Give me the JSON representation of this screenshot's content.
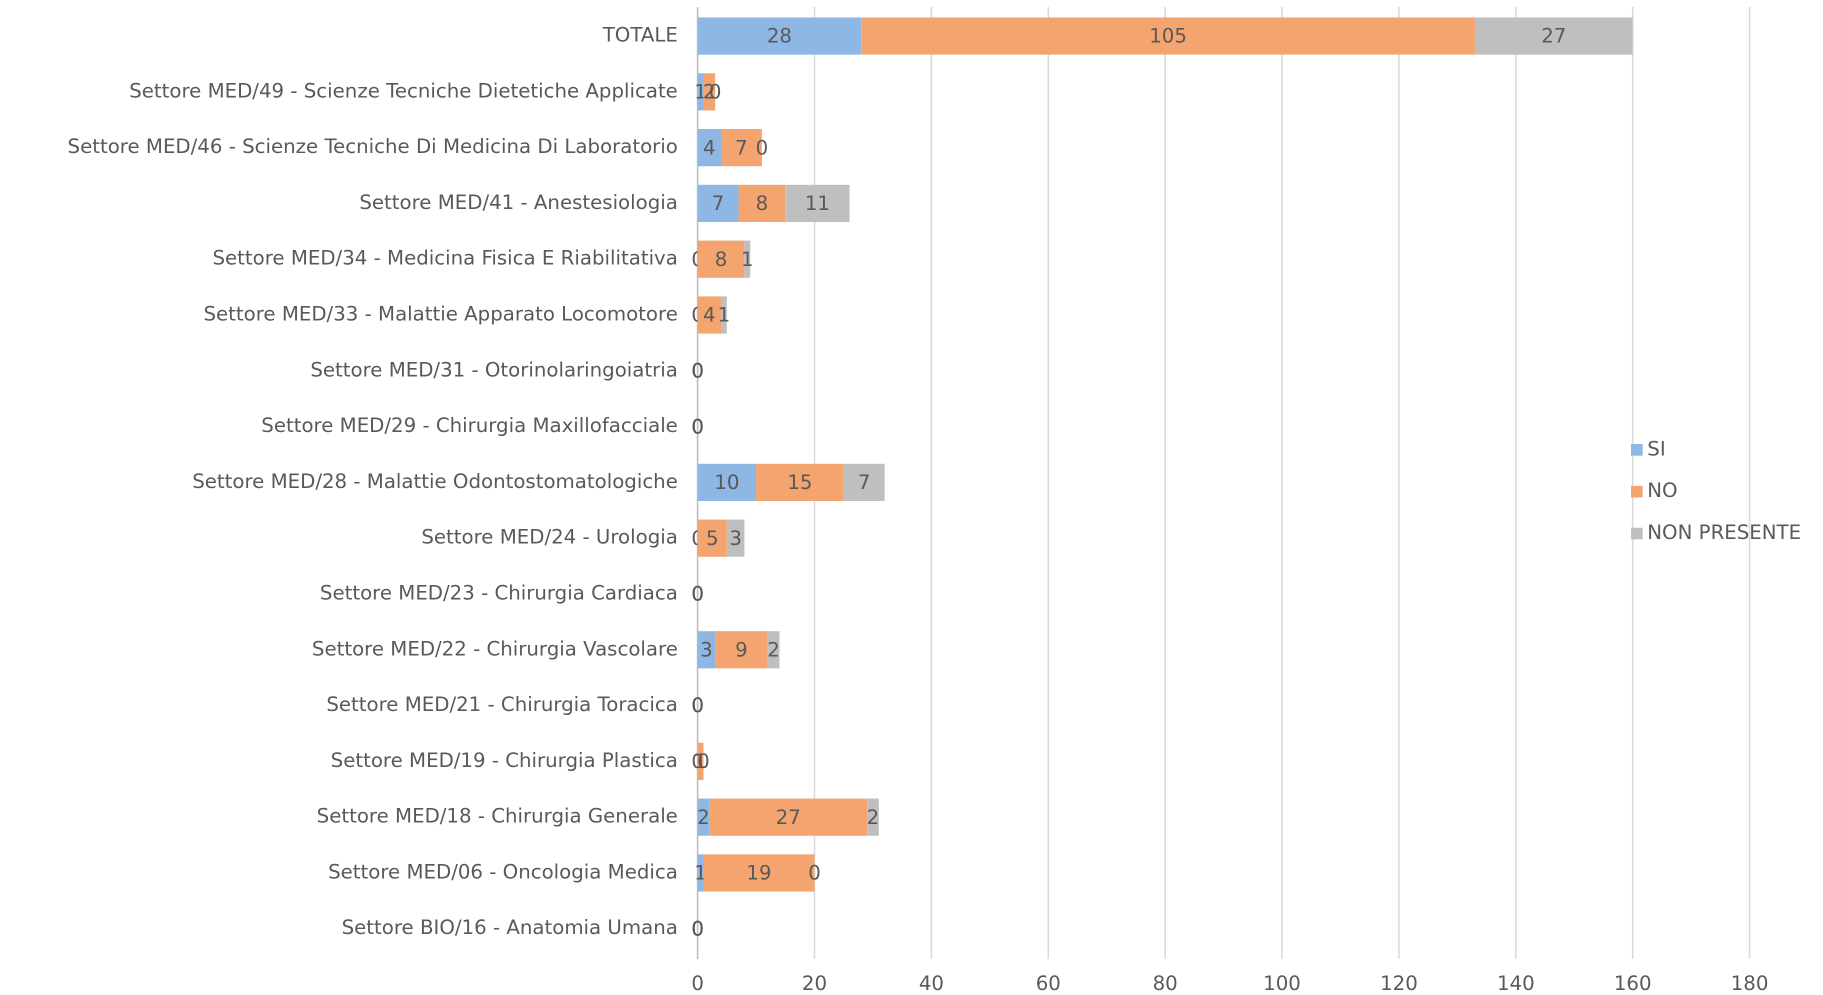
{
  "chart_data": {
    "type": "stacked_bar_horizontal",
    "categories": [
      "TOTALE",
      "Settore MED/49 - Scienze Tecniche Dietetiche Applicate",
      "Settore MED/46 - Scienze Tecniche Di Medicina Di Laboratorio",
      "Settore MED/41 - Anestesiologia",
      "Settore MED/34 - Medicina Fisica E Riabilitativa",
      "Settore MED/33 - Malattie Apparato Locomotore",
      "Settore MED/31 - Otorinolaringoiatria",
      "Settore MED/29 - Chirurgia Maxillofacciale",
      "Settore MED/28 - Malattie Odontostomatologiche",
      "Settore MED/24 - Urologia",
      "Settore MED/23 - Chirurgia Cardiaca",
      "Settore MED/22 - Chirurgia Vascolare",
      "Settore MED/21 - Chirurgia Toracica",
      "Settore MED/19 - Chirurgia Plastica",
      "Settore MED/18 - Chirurgia Generale",
      "Settore MED/06 - Oncologia Medica",
      "Settore BIO/16 - Anatomia Umana"
    ],
    "series": [
      {
        "name": "SI",
        "color": "#8eb8e3",
        "values": [
          28,
          1,
          4,
          7,
          0,
          0,
          0,
          0,
          10,
          0,
          0,
          3,
          0,
          0,
          2,
          1,
          0
        ]
      },
      {
        "name": "NO",
        "color": "#f4a46e",
        "values": [
          105,
          2,
          7,
          8,
          8,
          4,
          0,
          0,
          15,
          5,
          0,
          9,
          0,
          1,
          27,
          19,
          0
        ]
      },
      {
        "name": "NON PRESENTE",
        "color": "#bfbfbf",
        "values": [
          27,
          0,
          0,
          11,
          1,
          1,
          0,
          0,
          7,
          3,
          0,
          2,
          0,
          0,
          2,
          0,
          0
        ]
      }
    ],
    "xlim": [
      0,
      180
    ],
    "xticks": [
      0,
      20,
      40,
      60,
      80,
      100,
      120,
      140,
      160,
      180
    ],
    "grid": true,
    "legend": "right"
  }
}
